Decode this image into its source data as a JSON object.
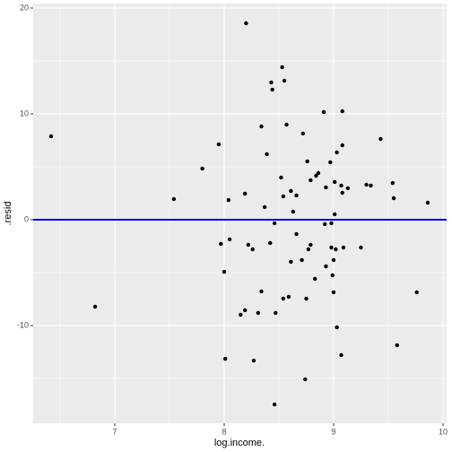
{
  "chart_data": {
    "type": "scatter",
    "x_label": "log.income.",
    "y_label": ".resid",
    "x": [
      6.418,
      6.82,
      7.54,
      7.8,
      7.95,
      7.97,
      8.0,
      8.01,
      8.04,
      8.05,
      8.19,
      8.2,
      8.19,
      8.15,
      8.22,
      8.26,
      8.27,
      8.31,
      8.34,
      8.34,
      8.37,
      8.39,
      8.42,
      8.43,
      8.44,
      8.46,
      8.47,
      8.46,
      8.53,
      8.52,
      8.54,
      8.55,
      8.54,
      8.57,
      8.59,
      8.61,
      8.61,
      8.63,
      8.66,
      8.66,
      8.71,
      8.72,
      8.74,
      8.75,
      8.76,
      8.77,
      8.79,
      8.79,
      8.83,
      8.84,
      8.86,
      8.91,
      8.93,
      8.92,
      8.93,
      8.97,
      8.98,
      8.98,
      8.99,
      9.0,
      9.0,
      9.01,
      9.01,
      9.02,
      9.03,
      9.03,
      9.07,
      9.07,
      9.08,
      9.08,
      9.09,
      9.08,
      9.13,
      9.25,
      9.3,
      9.34,
      9.43,
      9.54,
      9.55,
      9.58,
      9.76,
      9.86
    ],
    "values": [
      7.88,
      -8.22,
      1.95,
      4.83,
      7.12,
      -2.29,
      -4.92,
      -13.14,
      1.86,
      -1.86,
      2.46,
      18.56,
      -8.56,
      -8.98,
      -2.37,
      -2.8,
      -13.31,
      -8.81,
      8.81,
      -6.78,
      1.19,
      6.19,
      -2.2,
      12.97,
      12.29,
      -0.34,
      -8.81,
      -17.46,
      14.41,
      3.98,
      2.2,
      13.14,
      -7.46,
      8.98,
      -7.29,
      -3.98,
      2.71,
      0.76,
      2.29,
      -1.36,
      -3.81,
      8.14,
      -15.08,
      -7.46,
      5.51,
      -2.8,
      3.73,
      -2.37,
      -5.59,
      4.15,
      4.41,
      10.17,
      3.05,
      -0.42,
      -4.41,
      5.42,
      -0.34,
      -2.63,
      -5.25,
      -3.81,
      -6.86,
      0.51,
      3.56,
      -2.8,
      6.36,
      -10.17,
      3.22,
      -12.8,
      7.03,
      10.25,
      -2.63,
      2.54,
      2.97,
      -2.63,
      3.31,
      3.22,
      7.63,
      3.47,
      2.03,
      -11.86,
      -6.86,
      1.61
    ],
    "color": "#000000",
    "xlim": [
      6.254,
      10.033
    ],
    "ylim": [
      -19.24,
      20.42
    ],
    "xticks": [
      7,
      8,
      9,
      10
    ],
    "yticks": [
      -10,
      0,
      10,
      20
    ],
    "hline": {
      "value": 0,
      "color": "#0000cc"
    },
    "grid": true,
    "panel_color": "#ebebeb"
  }
}
